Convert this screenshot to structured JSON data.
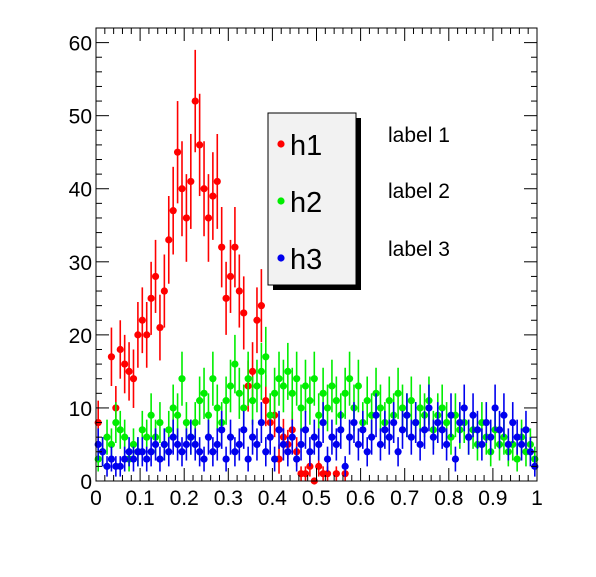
{
  "chart_data": {
    "type": "scatter",
    "title": "",
    "xlabel": "",
    "ylabel": "",
    "xlim": [
      0,
      1
    ],
    "ylim": [
      0,
      62
    ],
    "error_bars": true,
    "grid": false,
    "legend_position": "upper-center",
    "x_ticks": [
      "0",
      "0.1",
      "0.2",
      "0.3",
      "0.4",
      "0.5",
      "0.6",
      "0.7",
      "0.8",
      "0.9",
      "1"
    ],
    "y_ticks": [
      "0",
      "10",
      "20",
      "30",
      "40",
      "50",
      "60"
    ],
    "series": [
      {
        "name": "h1",
        "color": "#ff0000",
        "points": [
          [
            0.005,
            8
          ],
          [
            0.035,
            17
          ],
          [
            0.045,
            10
          ],
          [
            0.055,
            18
          ],
          [
            0.065,
            16
          ],
          [
            0.075,
            15
          ],
          [
            0.085,
            14
          ],
          [
            0.095,
            20
          ],
          [
            0.105,
            22
          ],
          [
            0.115,
            20
          ],
          [
            0.125,
            25
          ],
          [
            0.135,
            28
          ],
          [
            0.145,
            21
          ],
          [
            0.155,
            26
          ],
          [
            0.165,
            33
          ],
          [
            0.175,
            37
          ],
          [
            0.185,
            45
          ],
          [
            0.195,
            40
          ],
          [
            0.205,
            36
          ],
          [
            0.215,
            41
          ],
          [
            0.225,
            52
          ],
          [
            0.235,
            46
          ],
          [
            0.245,
            40
          ],
          [
            0.255,
            36
          ],
          [
            0.265,
            39
          ],
          [
            0.275,
            41
          ],
          [
            0.285,
            32
          ],
          [
            0.295,
            25
          ],
          [
            0.305,
            28
          ],
          [
            0.315,
            32
          ],
          [
            0.325,
            26
          ],
          [
            0.335,
            23
          ],
          [
            0.345,
            13
          ],
          [
            0.355,
            15
          ],
          [
            0.365,
            22
          ],
          [
            0.375,
            24
          ],
          [
            0.385,
            11
          ],
          [
            0.395,
            8
          ],
          [
            0.405,
            9
          ],
          [
            0.415,
            3
          ],
          [
            0.425,
            6
          ],
          [
            0.435,
            5
          ],
          [
            0.445,
            7
          ],
          [
            0.455,
            4
          ],
          [
            0.465,
            1
          ],
          [
            0.475,
            1
          ],
          [
            0.485,
            2
          ],
          [
            0.495,
            0
          ],
          [
            0.505,
            2
          ],
          [
            0.515,
            1
          ],
          [
            0.525,
            1
          ],
          [
            0.545,
            1
          ],
          [
            0.565,
            1
          ]
        ],
        "errors": [
          3,
          4,
          3,
          4,
          4,
          4,
          4,
          4.5,
          4.5,
          4.5,
          5,
          5,
          4.5,
          5,
          6,
          6,
          7,
          6.5,
          6,
          6.5,
          7,
          7,
          6.5,
          6,
          6,
          6.5,
          5.5,
          5,
          5,
          5.5,
          5,
          5,
          3.5,
          4,
          4.5,
          5,
          3.5,
          3,
          3,
          2,
          2.5,
          2,
          2.5,
          2,
          1,
          1,
          1.4,
          0,
          1.4,
          1,
          1,
          1,
          1
        ]
      },
      {
        "name": "h2",
        "color": "#00ee00",
        "points": [
          [
            0.005,
            3
          ],
          [
            0.015,
            4
          ],
          [
            0.025,
            6
          ],
          [
            0.035,
            5
          ],
          [
            0.045,
            8
          ],
          [
            0.055,
            7
          ],
          [
            0.065,
            6
          ],
          [
            0.075,
            3
          ],
          [
            0.085,
            5
          ],
          [
            0.095,
            4
          ],
          [
            0.105,
            7
          ],
          [
            0.115,
            6
          ],
          [
            0.125,
            9
          ],
          [
            0.135,
            6
          ],
          [
            0.145,
            8
          ],
          [
            0.155,
            5
          ],
          [
            0.165,
            7
          ],
          [
            0.175,
            10
          ],
          [
            0.185,
            9
          ],
          [
            0.195,
            14
          ],
          [
            0.205,
            8
          ],
          [
            0.215,
            6
          ],
          [
            0.225,
            8
          ],
          [
            0.235,
            11
          ],
          [
            0.245,
            12
          ],
          [
            0.255,
            9
          ],
          [
            0.265,
            14
          ],
          [
            0.275,
            10
          ],
          [
            0.285,
            8
          ],
          [
            0.295,
            11
          ],
          [
            0.305,
            13
          ],
          [
            0.315,
            16
          ],
          [
            0.325,
            12
          ],
          [
            0.335,
            10
          ],
          [
            0.345,
            14
          ],
          [
            0.355,
            11
          ],
          [
            0.365,
            13
          ],
          [
            0.375,
            15
          ],
          [
            0.385,
            17
          ],
          [
            0.395,
            9
          ],
          [
            0.405,
            12
          ],
          [
            0.415,
            14
          ],
          [
            0.425,
            13
          ],
          [
            0.435,
            15
          ],
          [
            0.445,
            12
          ],
          [
            0.455,
            14
          ],
          [
            0.465,
            10
          ],
          [
            0.475,
            13
          ],
          [
            0.485,
            11
          ],
          [
            0.495,
            14
          ],
          [
            0.505,
            9
          ],
          [
            0.515,
            12
          ],
          [
            0.525,
            10
          ],
          [
            0.535,
            13
          ],
          [
            0.545,
            11
          ],
          [
            0.555,
            9
          ],
          [
            0.565,
            12
          ],
          [
            0.575,
            14
          ],
          [
            0.585,
            10
          ],
          [
            0.595,
            13
          ],
          [
            0.605,
            8
          ],
          [
            0.615,
            11
          ],
          [
            0.625,
            9
          ],
          [
            0.635,
            12
          ],
          [
            0.645,
            10
          ],
          [
            0.655,
            8
          ],
          [
            0.665,
            11
          ],
          [
            0.675,
            9
          ],
          [
            0.685,
            12
          ],
          [
            0.695,
            10
          ],
          [
            0.705,
            9
          ],
          [
            0.715,
            11
          ],
          [
            0.725,
            8
          ],
          [
            0.735,
            10
          ],
          [
            0.745,
            9
          ],
          [
            0.755,
            11
          ],
          [
            0.765,
            7
          ],
          [
            0.775,
            9
          ],
          [
            0.785,
            10
          ],
          [
            0.795,
            8
          ],
          [
            0.805,
            6
          ],
          [
            0.815,
            9
          ],
          [
            0.825,
            7
          ],
          [
            0.835,
            8
          ],
          [
            0.845,
            6
          ],
          [
            0.855,
            7
          ],
          [
            0.865,
            5
          ],
          [
            0.875,
            8
          ],
          [
            0.885,
            6
          ],
          [
            0.895,
            4
          ],
          [
            0.905,
            7
          ],
          [
            0.915,
            5
          ],
          [
            0.925,
            6
          ],
          [
            0.935,
            4
          ],
          [
            0.945,
            5
          ],
          [
            0.955,
            3
          ],
          [
            0.965,
            6
          ],
          [
            0.975,
            4
          ],
          [
            0.985,
            5
          ],
          [
            0.995,
            3
          ]
        ],
        "errors": [
          1.7,
          2,
          2.4,
          2.2,
          2.8,
          2.6,
          2.4,
          1.7,
          2.2,
          2,
          2.6,
          2.4,
          3,
          2.4,
          2.8,
          2.2,
          2.6,
          3.2,
          3,
          3.7,
          2.8,
          2.4,
          2.8,
          3.3,
          3.5,
          3,
          3.7,
          3.2,
          2.8,
          3.3,
          3.6,
          4,
          3.5,
          3.2,
          3.7,
          3.3,
          3.6,
          3.9,
          4.1,
          3,
          3.5,
          3.7,
          3.6,
          3.9,
          3.5,
          3.7,
          3.2,
          3.6,
          3.3,
          3.7,
          3,
          3.5,
          3.2,
          3.6,
          3.3,
          3,
          3.5,
          3.7,
          3.2,
          3.6,
          2.8,
          3.3,
          3,
          3.5,
          3.2,
          2.8,
          3.3,
          3,
          3.5,
          3.2,
          3,
          3.3,
          2.8,
          3.2,
          3,
          3.3,
          2.6,
          3,
          3.2,
          2.8,
          2.4,
          3,
          2.6,
          2.8,
          2.4,
          2.6,
          2.2,
          2.8,
          2.4,
          2,
          2.6,
          2.2,
          2.4,
          2,
          2.2,
          1.7,
          2.4,
          2,
          2.2,
          1.7
        ]
      },
      {
        "name": "h3",
        "color": "#0000ee",
        "points": [
          [
            0.005,
            5
          ],
          [
            0.015,
            4
          ],
          [
            0.025,
            2
          ],
          [
            0.035,
            3
          ],
          [
            0.045,
            2
          ],
          [
            0.055,
            2
          ],
          [
            0.065,
            3
          ],
          [
            0.075,
            4
          ],
          [
            0.085,
            3
          ],
          [
            0.095,
            4
          ],
          [
            0.105,
            4
          ],
          [
            0.115,
            3
          ],
          [
            0.125,
            4
          ],
          [
            0.135,
            5
          ],
          [
            0.145,
            3
          ],
          [
            0.155,
            5
          ],
          [
            0.165,
            4
          ],
          [
            0.175,
            6
          ],
          [
            0.185,
            5
          ],
          [
            0.195,
            4
          ],
          [
            0.205,
            5
          ],
          [
            0.215,
            6
          ],
          [
            0.225,
            5
          ],
          [
            0.235,
            4
          ],
          [
            0.245,
            3
          ],
          [
            0.255,
            6
          ],
          [
            0.265,
            4
          ],
          [
            0.275,
            5
          ],
          [
            0.285,
            7
          ],
          [
            0.295,
            3
          ],
          [
            0.305,
            6
          ],
          [
            0.315,
            4
          ],
          [
            0.325,
            5
          ],
          [
            0.335,
            7
          ],
          [
            0.345,
            3
          ],
          [
            0.355,
            6
          ],
          [
            0.365,
            5
          ],
          [
            0.375,
            8
          ],
          [
            0.385,
            4
          ],
          [
            0.395,
            6
          ],
          [
            0.405,
            3
          ],
          [
            0.415,
            7
          ],
          [
            0.425,
            5
          ],
          [
            0.435,
            4
          ],
          [
            0.445,
            6
          ],
          [
            0.455,
            3
          ],
          [
            0.465,
            5
          ],
          [
            0.475,
            7
          ],
          [
            0.485,
            4
          ],
          [
            0.495,
            6
          ],
          [
            0.505,
            5
          ],
          [
            0.515,
            8
          ],
          [
            0.525,
            3
          ],
          [
            0.535,
            6
          ],
          [
            0.545,
            5
          ],
          [
            0.555,
            7
          ],
          [
            0.565,
            2
          ],
          [
            0.575,
            6
          ],
          [
            0.585,
            8
          ],
          [
            0.595,
            5
          ],
          [
            0.605,
            7
          ],
          [
            0.615,
            4
          ],
          [
            0.625,
            6
          ],
          [
            0.635,
            9
          ],
          [
            0.645,
            5
          ],
          [
            0.655,
            7
          ],
          [
            0.665,
            6
          ],
          [
            0.675,
            8
          ],
          [
            0.685,
            4
          ],
          [
            0.695,
            7
          ],
          [
            0.705,
            9
          ],
          [
            0.715,
            6
          ],
          [
            0.725,
            8
          ],
          [
            0.735,
            5
          ],
          [
            0.745,
            7
          ],
          [
            0.755,
            10
          ],
          [
            0.765,
            6
          ],
          [
            0.775,
            8
          ],
          [
            0.785,
            7
          ],
          [
            0.795,
            5
          ],
          [
            0.805,
            9
          ],
          [
            0.815,
            3
          ],
          [
            0.825,
            8
          ],
          [
            0.835,
            10
          ],
          [
            0.845,
            6
          ],
          [
            0.855,
            9
          ],
          [
            0.865,
            7
          ],
          [
            0.875,
            5
          ],
          [
            0.885,
            8
          ],
          [
            0.895,
            6
          ],
          [
            0.905,
            10
          ],
          [
            0.915,
            7
          ],
          [
            0.925,
            9
          ],
          [
            0.935,
            5
          ],
          [
            0.945,
            8
          ],
          [
            0.955,
            6
          ],
          [
            0.965,
            5
          ],
          [
            0.975,
            7
          ],
          [
            0.985,
            4
          ],
          [
            0.995,
            2
          ]
        ],
        "errors": [
          2.2,
          2,
          1.4,
          1.7,
          1.4,
          1.4,
          1.7,
          2,
          1.7,
          2,
          2,
          1.7,
          2,
          2.2,
          1.7,
          2.2,
          2,
          2.4,
          2.2,
          2,
          2.2,
          2.4,
          2.2,
          2,
          1.7,
          2.4,
          2,
          2.2,
          2.6,
          1.7,
          2.4,
          2,
          2.2,
          2.6,
          1.7,
          2.4,
          2.2,
          2.8,
          2,
          2.4,
          1.7,
          2.6,
          2.2,
          2,
          2.4,
          1.7,
          2.2,
          2.6,
          2,
          2.4,
          2.2,
          2.8,
          1.7,
          2.4,
          2.2,
          2.6,
          1.4,
          2.4,
          2.8,
          2.2,
          2.6,
          2,
          2.4,
          3,
          2.2,
          2.6,
          2.4,
          2.8,
          2,
          2.6,
          3,
          2.4,
          2.8,
          2.2,
          2.6,
          3.2,
          2.4,
          2.8,
          2.6,
          2.2,
          3,
          1.7,
          2.8,
          3.2,
          2.4,
          3,
          2.6,
          2.2,
          2.8,
          2.4,
          3.2,
          2.6,
          3,
          2.2,
          2.8,
          2.4,
          2.2,
          2.6,
          2,
          1.4
        ]
      }
    ],
    "annotations": [
      "label 1",
      "label 2",
      "label 3"
    ]
  }
}
